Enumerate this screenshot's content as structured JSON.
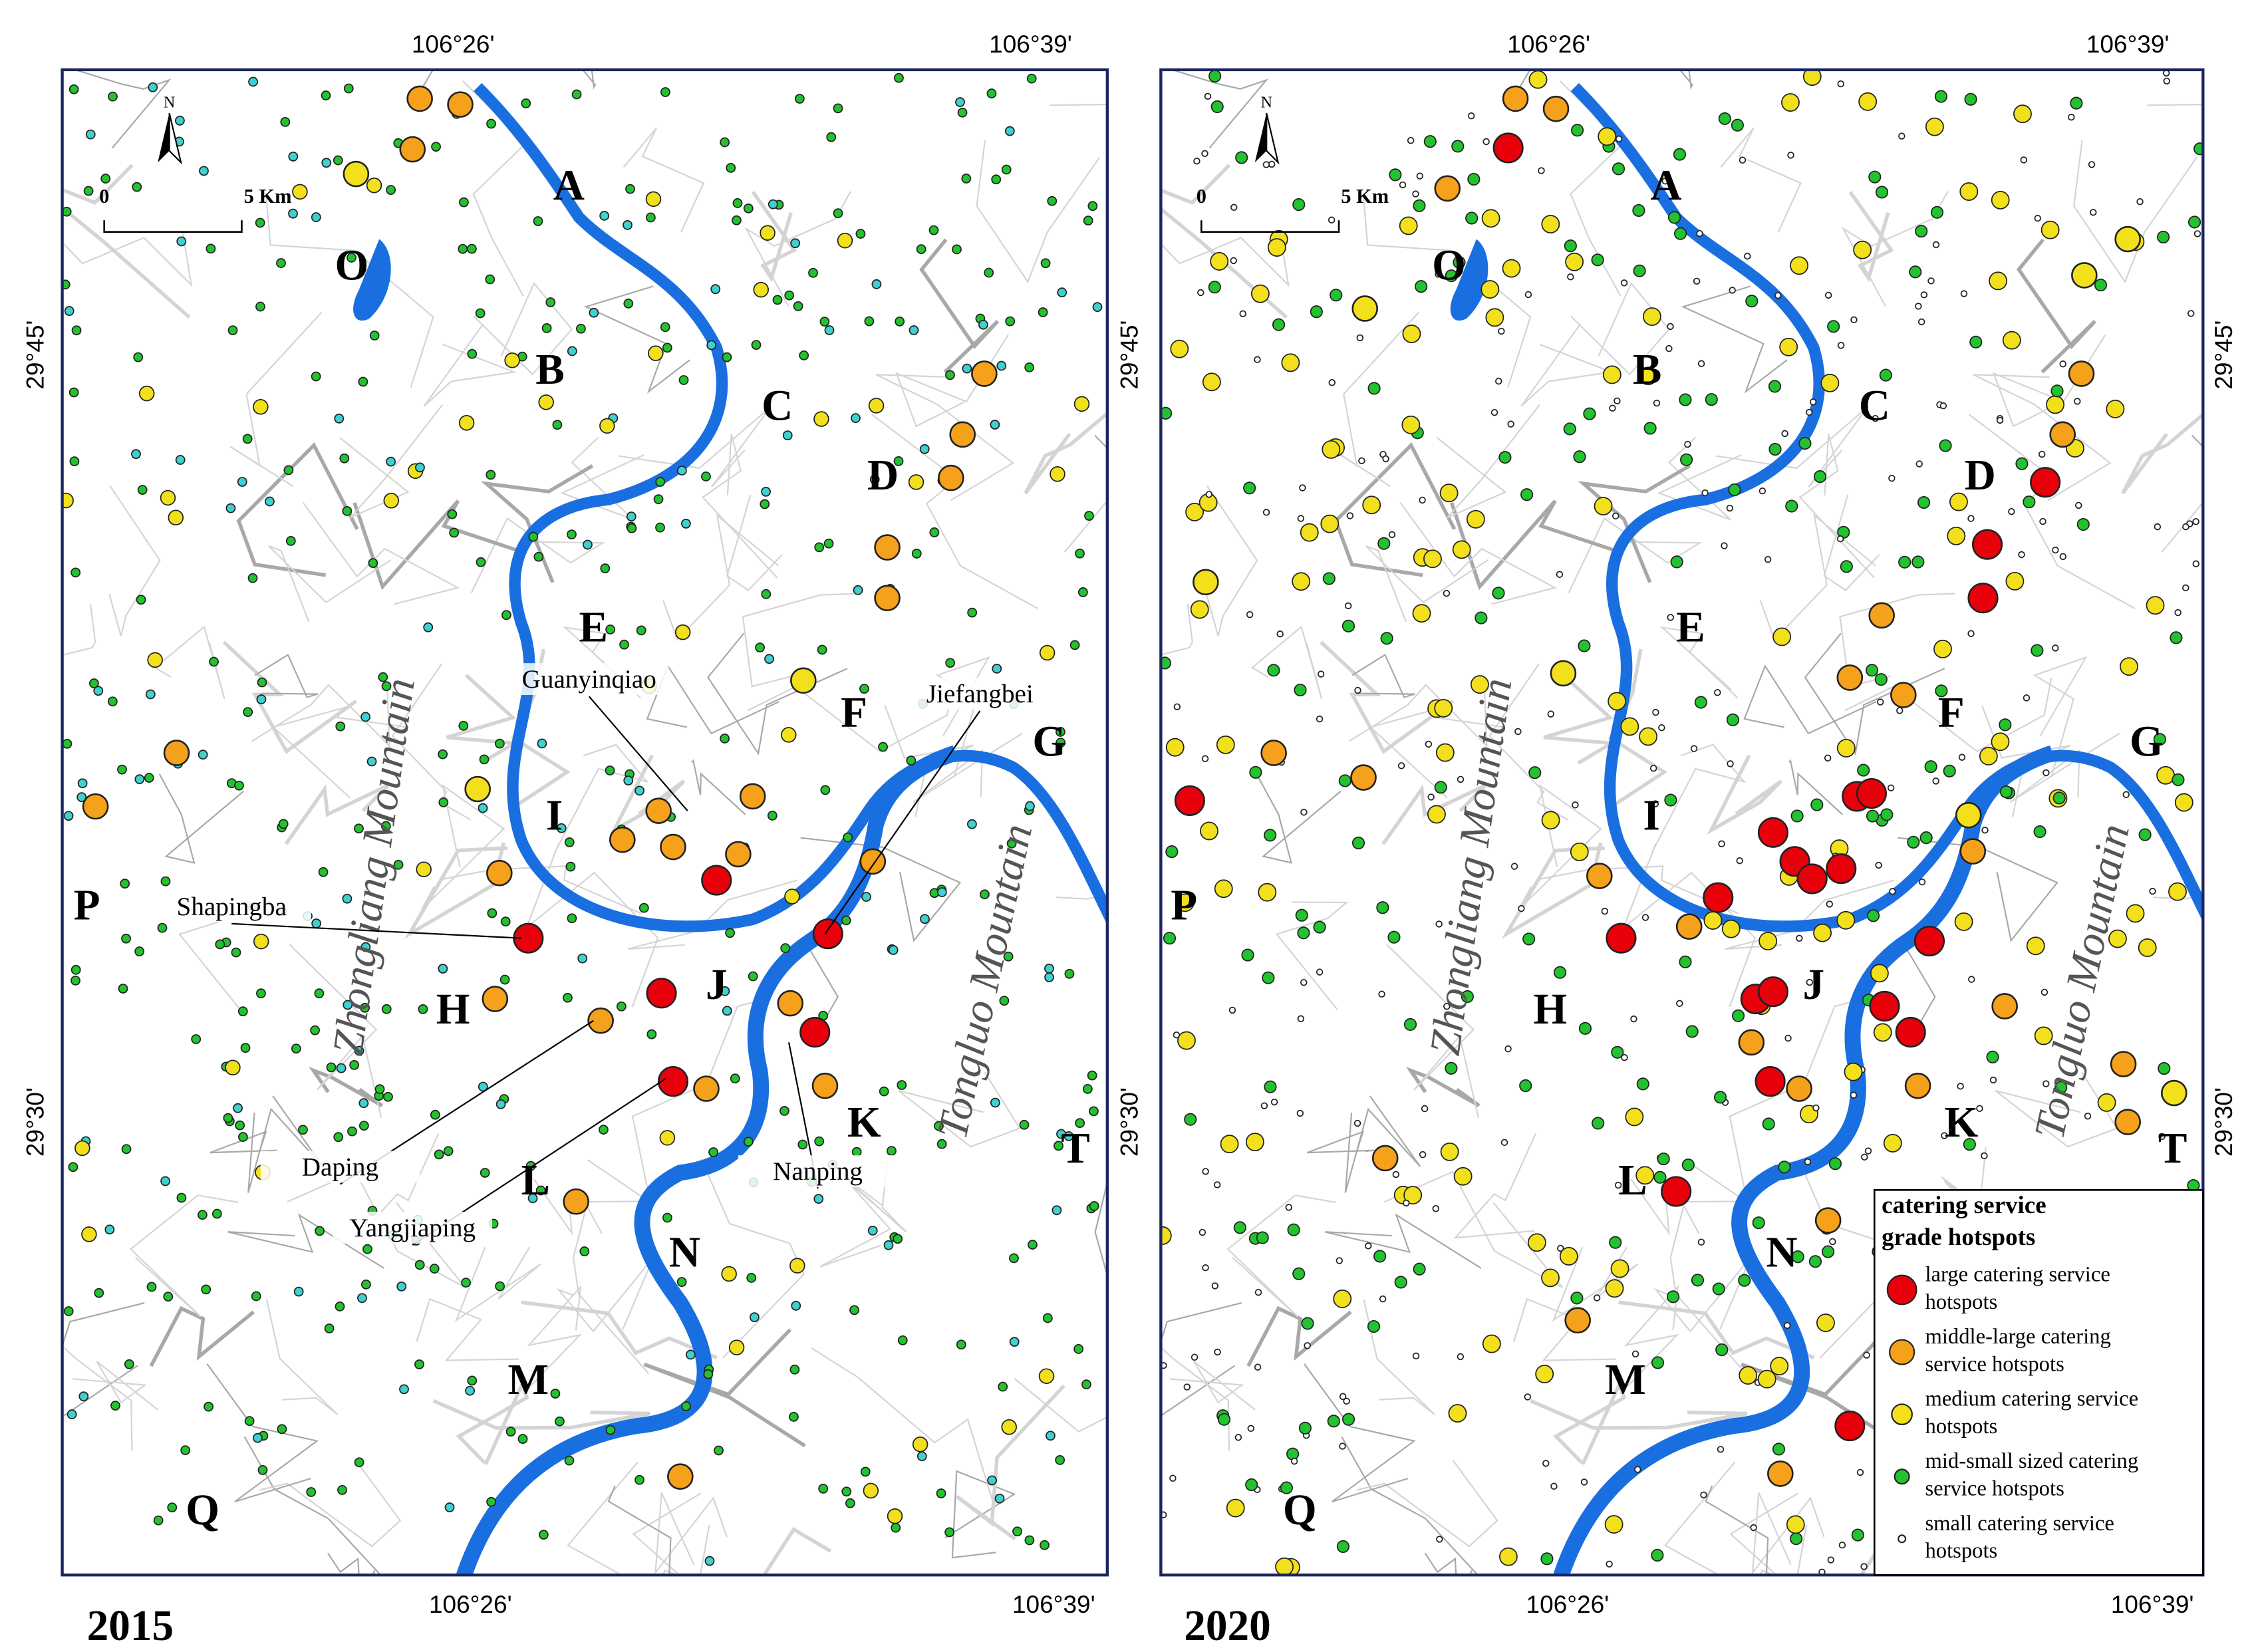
{
  "panels": [
    {
      "year": "2015",
      "north": "N",
      "scale": {
        "zero": "0",
        "dist": "5 Km"
      },
      "top_lon": [
        "106°26'",
        "106°39'"
      ],
      "bottom_lon": [
        "106°26'",
        "106°39'"
      ],
      "left_lat": [
        "29°45'",
        "29°30'"
      ],
      "right_lat": [
        "29°45'",
        "29°30'"
      ],
      "districts": [
        "A",
        "B",
        "C",
        "D",
        "E",
        "F",
        "G",
        "I",
        "P",
        "H",
        "J",
        "K",
        "T",
        "L",
        "N",
        "M",
        "Q",
        "O"
      ],
      "mountains": [
        "Zhongliang Mountain",
        "Tongluo Mountain"
      ],
      "places": [
        "Guanyinqiao",
        "Jiefangbei",
        "Shapingba",
        "Daping",
        "Yangjiaping",
        "Nanping"
      ]
    },
    {
      "year": "2020",
      "north": "N",
      "scale": {
        "zero": "0",
        "dist": "5 Km"
      },
      "top_lon": [
        "106°26'",
        "106°39'"
      ],
      "bottom_lon": [
        "106°26'",
        "106°39'"
      ],
      "right_lat": [
        "29°45'",
        "29°30'"
      ],
      "districts": [
        "A",
        "B",
        "C",
        "D",
        "E",
        "F",
        "G",
        "I",
        "P",
        "H",
        "J",
        "K",
        "T",
        "L",
        "N",
        "M",
        "Q",
        "O"
      ],
      "mountains": [
        "Zhongliang Mountain",
        "Tongluo Mountain"
      ]
    }
  ],
  "legend": {
    "title": [
      "catering service",
      "grade hotspots"
    ],
    "items": [
      {
        "lines": [
          "large catering service",
          "hotspots"
        ],
        "color": "#e8000b"
      },
      {
        "lines": [
          "middle-large catering",
          "service hotspots"
        ],
        "color": "#f5a11c"
      },
      {
        "lines": [
          "medium catering service",
          "hotspots"
        ],
        "color": "#f2e01c"
      },
      {
        "lines": [
          "mid-small sized catering",
          "service hotspots"
        ],
        "color": "#22c32e"
      },
      {
        "lines": [
          "small catering service",
          "hotspots"
        ],
        "color": "#ffffff"
      }
    ]
  }
}
